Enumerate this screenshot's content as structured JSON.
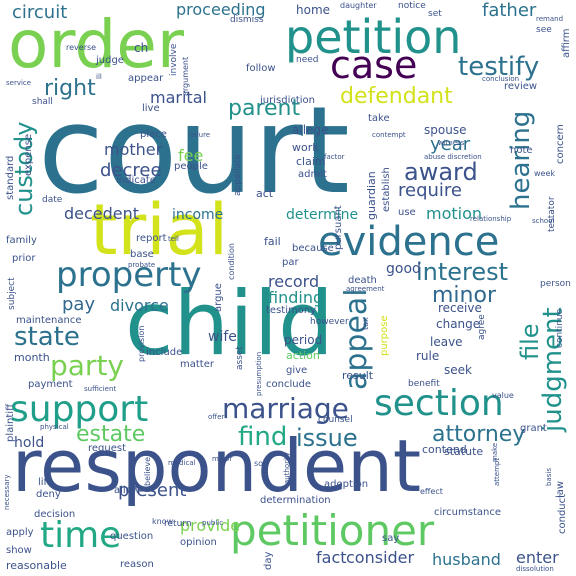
{
  "words": [
    {
      "text": "court",
      "color": "#2c728e"
    },
    {
      "text": "respondent",
      "color": "#3b528b"
    },
    {
      "text": "child",
      "color": "#21918c"
    },
    {
      "text": "order",
      "color": "#7ad151"
    },
    {
      "text": "trial",
      "color": "#d2e21b"
    },
    {
      "text": "petition",
      "color": "#21918c"
    },
    {
      "text": "evidence",
      "color": "#2c728e"
    },
    {
      "text": "case",
      "color": "#440154"
    },
    {
      "text": "petitioner",
      "color": "#5ec962"
    },
    {
      "text": "support",
      "color": "#1f9e89"
    },
    {
      "text": "section",
      "color": "#21918c"
    },
    {
      "text": "time",
      "color": "#22a884"
    },
    {
      "text": "property",
      "color": "#2c728e"
    },
    {
      "text": "marriage",
      "color": "#3b528b"
    },
    {
      "text": "appeal",
      "color": "#2c728e"
    },
    {
      "text": "interest",
      "color": "#2c728e"
    },
    {
      "text": "testify",
      "color": "#2c728e"
    },
    {
      "text": "judgment",
      "color": "#21918c"
    },
    {
      "text": "hearing",
      "color": "#2c728e"
    },
    {
      "text": "custody",
      "color": "#21918c"
    },
    {
      "text": "party",
      "color": "#7ad151"
    },
    {
      "text": "state",
      "color": "#2c728e"
    },
    {
      "text": "estate",
      "color": "#5ec962"
    },
    {
      "text": "find",
      "color": "#22a884"
    },
    {
      "text": "issue",
      "color": "#2c728e"
    },
    {
      "text": "attorney",
      "color": "#2c728e"
    },
    {
      "text": "file",
      "color": "#21918c"
    },
    {
      "text": "minor",
      "color": "#31688e"
    },
    {
      "text": "award",
      "color": "#3b528b"
    },
    {
      "text": "parent",
      "color": "#21918c"
    },
    {
      "text": "defendant",
      "color": "#d2e21b"
    },
    {
      "text": "right",
      "color": "#2c728e"
    },
    {
      "text": "circuit",
      "color": "#2c728e"
    },
    {
      "text": "proceeding",
      "color": "#2c728e"
    },
    {
      "text": "father",
      "color": "#2c728e"
    },
    {
      "text": "marital",
      "color": "#3b528b"
    },
    {
      "text": "mother",
      "color": "#3b528b"
    },
    {
      "text": "decree",
      "color": "#3b528b"
    },
    {
      "text": "year",
      "color": "#2c728e"
    },
    {
      "text": "fee",
      "color": "#7ad151"
    },
    {
      "text": "require",
      "color": "#3b528b"
    },
    {
      "text": "decedent",
      "color": "#3b528b"
    },
    {
      "text": "income",
      "color": "#2c728e"
    },
    {
      "text": "determine",
      "color": "#21918c"
    },
    {
      "text": "motion",
      "color": "#21918c"
    },
    {
      "text": "record",
      "color": "#3b528b"
    },
    {
      "text": "finding",
      "color": "#21918c"
    },
    {
      "text": "divorce",
      "color": "#2c728e"
    },
    {
      "text": "pay",
      "color": "#31688e"
    },
    {
      "text": "good",
      "color": "#3b528b"
    },
    {
      "text": "present",
      "color": "#3b528b"
    },
    {
      "text": "provide",
      "color": "#7ad151"
    },
    {
      "text": "consider",
      "color": "#3b528b"
    },
    {
      "text": "husband",
      "color": "#2c728e"
    },
    {
      "text": "enter",
      "color": "#3b528b"
    },
    {
      "text": "fact",
      "color": "#3b528b"
    },
    {
      "text": "hold",
      "color": "#3b528b"
    },
    {
      "text": "wife",
      "color": "#3b528b"
    },
    {
      "text": "home",
      "color": "#3b528b"
    },
    {
      "text": "receive",
      "color": "#3b528b"
    },
    {
      "text": "change",
      "color": "#3b528b"
    },
    {
      "text": "leave",
      "color": "#3b528b"
    },
    {
      "text": "rule",
      "color": "#3b528b"
    },
    {
      "text": "seek",
      "color": "#3b528b"
    },
    {
      "text": "result",
      "color": "#3b528b"
    },
    {
      "text": "ch",
      "color": "#3b528b"
    },
    {
      "text": "judge",
      "color": "#3b528b"
    },
    {
      "text": "appear",
      "color": "#3b528b"
    },
    {
      "text": "follow",
      "color": "#3b528b"
    },
    {
      "text": "need",
      "color": "#3b528b"
    },
    {
      "text": "review",
      "color": "#3b528b"
    },
    {
      "text": "take",
      "color": "#3b528b"
    },
    {
      "text": "live",
      "color": "#3b528b"
    },
    {
      "text": "jurisdiction",
      "color": "#3b528b"
    },
    {
      "text": "place",
      "color": "#3b528b"
    },
    {
      "text": "people",
      "color": "#3b528b"
    },
    {
      "text": "indicate",
      "color": "#3b528b"
    },
    {
      "text": "allege",
      "color": "#3b528b"
    },
    {
      "text": "work",
      "color": "#3b528b"
    },
    {
      "text": "claim",
      "color": "#3b528b"
    },
    {
      "text": "admit",
      "color": "#3b528b"
    },
    {
      "text": "spouse",
      "color": "#3b528b"
    },
    {
      "text": "note",
      "color": "#3b528b"
    },
    {
      "text": "concern",
      "color": "#3b528b"
    },
    {
      "text": "guardian",
      "color": "#3b528b"
    },
    {
      "text": "establish",
      "color": "#3b528b"
    },
    {
      "text": "act",
      "color": "#3b528b"
    },
    {
      "text": "because",
      "color": "#3b528b"
    },
    {
      "text": "use",
      "color": "#3b528b"
    },
    {
      "text": "fail",
      "color": "#3b528b"
    },
    {
      "text": "par",
      "color": "#3b528b"
    },
    {
      "text": "pursuant",
      "color": "#3b528b"
    },
    {
      "text": "report",
      "color": "#3b528b"
    },
    {
      "text": "base",
      "color": "#3b528b"
    },
    {
      "text": "death",
      "color": "#3b528b"
    },
    {
      "text": "testimony",
      "color": "#3b528b"
    },
    {
      "text": "period",
      "color": "#3b528b"
    },
    {
      "text": "action",
      "color": "#5ec962"
    },
    {
      "text": "include",
      "color": "#3b528b"
    },
    {
      "text": "matter",
      "color": "#3b528b"
    },
    {
      "text": "give",
      "color": "#3b528b"
    },
    {
      "text": "conclude",
      "color": "#3b528b"
    },
    {
      "text": "argue",
      "color": "#3b528b"
    },
    {
      "text": "however",
      "color": "#3b528b"
    },
    {
      "text": "purpose",
      "color": "#d2e21b"
    },
    {
      "text": "month",
      "color": "#3b528b"
    },
    {
      "text": "maintenance",
      "color": "#3b528b"
    },
    {
      "text": "payment",
      "color": "#3b528b"
    },
    {
      "text": "plaintiff",
      "color": "#3b528b"
    },
    {
      "text": "family",
      "color": "#3b528b"
    },
    {
      "text": "prior",
      "color": "#3b528b"
    },
    {
      "text": "date",
      "color": "#3b528b"
    },
    {
      "text": "standard",
      "color": "#3b528b"
    },
    {
      "text": "expense",
      "color": "#3b528b"
    },
    {
      "text": "subject",
      "color": "#3b528b"
    },
    {
      "text": "statute",
      "color": "#3b528b"
    },
    {
      "text": "contend",
      "color": "#3b528b"
    },
    {
      "text": "grant",
      "color": "#3b528b"
    },
    {
      "text": "request",
      "color": "#3b528b"
    },
    {
      "text": "counsel",
      "color": "#3b528b"
    },
    {
      "text": "life",
      "color": "#3b528b"
    },
    {
      "text": "deny",
      "color": "#3b528b"
    },
    {
      "text": "allow",
      "color": "#3b528b"
    },
    {
      "text": "adoption",
      "color": "#3b528b"
    },
    {
      "text": "decision",
      "color": "#3b528b"
    },
    {
      "text": "determination",
      "color": "#3b528b"
    },
    {
      "text": "circumstance",
      "color": "#3b528b"
    },
    {
      "text": "return",
      "color": "#3b528b"
    },
    {
      "text": "question",
      "color": "#3b528b"
    },
    {
      "text": "opinion",
      "color": "#3b528b"
    },
    {
      "text": "reason",
      "color": "#3b528b"
    },
    {
      "text": "reasonable",
      "color": "#3b528b"
    },
    {
      "text": "show",
      "color": "#3b528b"
    },
    {
      "text": "apply",
      "color": "#3b528b"
    },
    {
      "text": "say",
      "color": "#3b528b"
    },
    {
      "text": "day",
      "color": "#3b528b"
    },
    {
      "text": "conduct",
      "color": "#3b528b"
    },
    {
      "text": "law",
      "color": "#3b528b"
    },
    {
      "text": "dismiss",
      "color": "#3b528b"
    },
    {
      "text": "daughter",
      "color": "#3b528b"
    },
    {
      "text": "notice",
      "color": "#3b528b"
    },
    {
      "text": "set",
      "color": "#3b528b"
    },
    {
      "text": "affirm",
      "color": "#3b528b"
    },
    {
      "text": "argument",
      "color": "#3b528b"
    },
    {
      "text": "involve",
      "color": "#3b528b"
    },
    {
      "text": "reverse",
      "color": "#3b528b"
    },
    {
      "text": "shall",
      "color": "#3b528b"
    },
    {
      "text": "appellate",
      "color": "#3b528b"
    },
    {
      "text": "sufficient",
      "color": "#3b528b"
    },
    {
      "text": "benefit",
      "color": "#3b528b"
    },
    {
      "text": "value",
      "color": "#3b528b"
    },
    {
      "text": "agree",
      "color": "#3b528b"
    },
    {
      "text": "asset",
      "color": "#3b528b"
    },
    {
      "text": "provision",
      "color": "#3b528b"
    },
    {
      "text": "effect",
      "color": "#3b528b"
    },
    {
      "text": "person",
      "color": "#3b528b"
    },
    {
      "text": "continue",
      "color": "#3b528b"
    },
    {
      "text": "condition",
      "color": "#3b528b"
    },
    {
      "text": "testator",
      "color": "#3b528b"
    },
    {
      "text": "week",
      "color": "#3b528b"
    },
    {
      "text": "relationship",
      "color": "#3b528b"
    },
    {
      "text": "school",
      "color": "#3b528b"
    },
    {
      "text": "see",
      "color": "#3b528b"
    },
    {
      "text": "probate",
      "color": "#3b528b"
    },
    {
      "text": "service",
      "color": "#3b528b"
    },
    {
      "text": "conclusion",
      "color": "#3b528b"
    },
    {
      "text": "failure",
      "color": "#3b528b"
    },
    {
      "text": "factor",
      "color": "#3b528b"
    },
    {
      "text": "witness",
      "color": "#3b528b"
    },
    {
      "text": "abuse discretion",
      "color": "#3b528b"
    },
    {
      "text": "agreement",
      "color": "#3b528b"
    },
    {
      "text": "physical",
      "color": "#3b528b"
    },
    {
      "text": "son",
      "color": "#3b528b"
    },
    {
      "text": "necessary",
      "color": "#3b528b"
    },
    {
      "text": "basis",
      "color": "#3b528b"
    },
    {
      "text": "dissolution",
      "color": "#3b528b"
    },
    {
      "text": "public",
      "color": "#3b528b"
    },
    {
      "text": "know",
      "color": "#3b528b"
    },
    {
      "text": "authority",
      "color": "#3b528b"
    },
    {
      "text": "believe",
      "color": "#3b528b"
    },
    {
      "text": "major",
      "color": "#3b528b"
    },
    {
      "text": "contempt",
      "color": "#3b528b"
    },
    {
      "text": "remand",
      "color": "#3b528b"
    },
    {
      "text": "tell",
      "color": "#3b528b"
    },
    {
      "text": "medical",
      "color": "#3b528b"
    },
    {
      "text": "attempt",
      "color": "#3b528b"
    },
    {
      "text": "presumption",
      "color": "#3b528b"
    },
    {
      "text": "offer",
      "color": "#3b528b"
    },
    {
      "text": "tax",
      "color": "#3b528b"
    },
    {
      "text": "ill",
      "color": "#3b528b"
    },
    {
      "text": "make",
      "color": "#3b528b"
    }
  ]
}
